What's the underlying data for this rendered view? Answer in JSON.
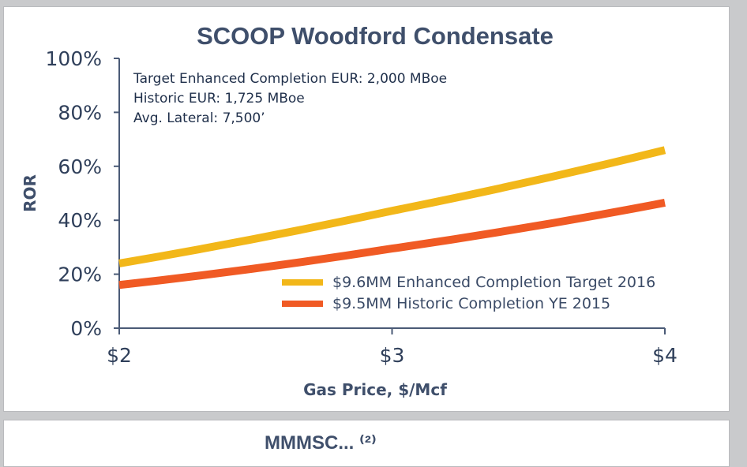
{
  "chart_data": {
    "type": "line",
    "title": "SCOOP Woodford Condensate",
    "xlabel": "Gas Price, $/Mcf",
    "ylabel": "ROR",
    "x": [
      2,
      3,
      4
    ],
    "x_tick_labels": [
      "$2",
      "$3",
      "$4"
    ],
    "y_tick_labels": [
      "0%",
      "20%",
      "40%",
      "60%",
      "80%",
      "100%"
    ],
    "xlim": [
      2,
      4
    ],
    "ylim": [
      0,
      100
    ],
    "grid": false,
    "legend_position": "bottom-right",
    "annotations": [
      "Target Enhanced Completion EUR: 2,000 MBoe",
      "Historic EUR: 1,725 MBoe",
      "Avg. Lateral: 7,500’"
    ],
    "series": [
      {
        "name": "$9.6MM Enhanced Completion Target 2016",
        "color": "#f2b719",
        "values": [
          24,
          43.5,
          66
        ]
      },
      {
        "name": "$9.5MM Historic Completion YE 2015",
        "color": "#f05a24",
        "values": [
          16,
          29.5,
          46.5
        ]
      }
    ]
  },
  "second_panel": {
    "title_partial": "MMMSC... (2)"
  }
}
